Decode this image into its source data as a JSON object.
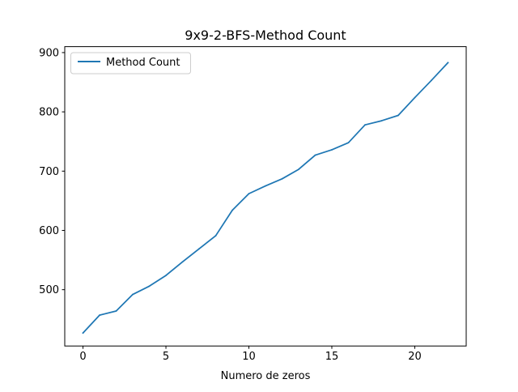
{
  "chart_data": {
    "type": "line",
    "title": "9x9-2-BFS-Method Count",
    "xlabel": "Numero de zeros",
    "ylabel": "",
    "xlim": [
      -1.1,
      23.1
    ],
    "ylim": [
      405,
      910
    ],
    "xticks": [
      0,
      5,
      10,
      15,
      20
    ],
    "yticks": [
      500,
      600,
      700,
      800,
      900
    ],
    "grid": false,
    "legend_position": "upper-left",
    "series": [
      {
        "name": "Method Count",
        "color": "#1f77b4",
        "x": [
          0,
          1,
          2,
          3,
          4,
          5,
          6,
          7,
          8,
          9,
          10,
          11,
          12,
          13,
          14,
          15,
          16,
          17,
          18,
          19,
          20,
          21,
          22
        ],
        "y": [
          427,
          457,
          464,
          492,
          506,
          524,
          547,
          569,
          591,
          634,
          662,
          675,
          687,
          703,
          727,
          736,
          748,
          778,
          785,
          794,
          824,
          853,
          883
        ]
      }
    ]
  }
}
